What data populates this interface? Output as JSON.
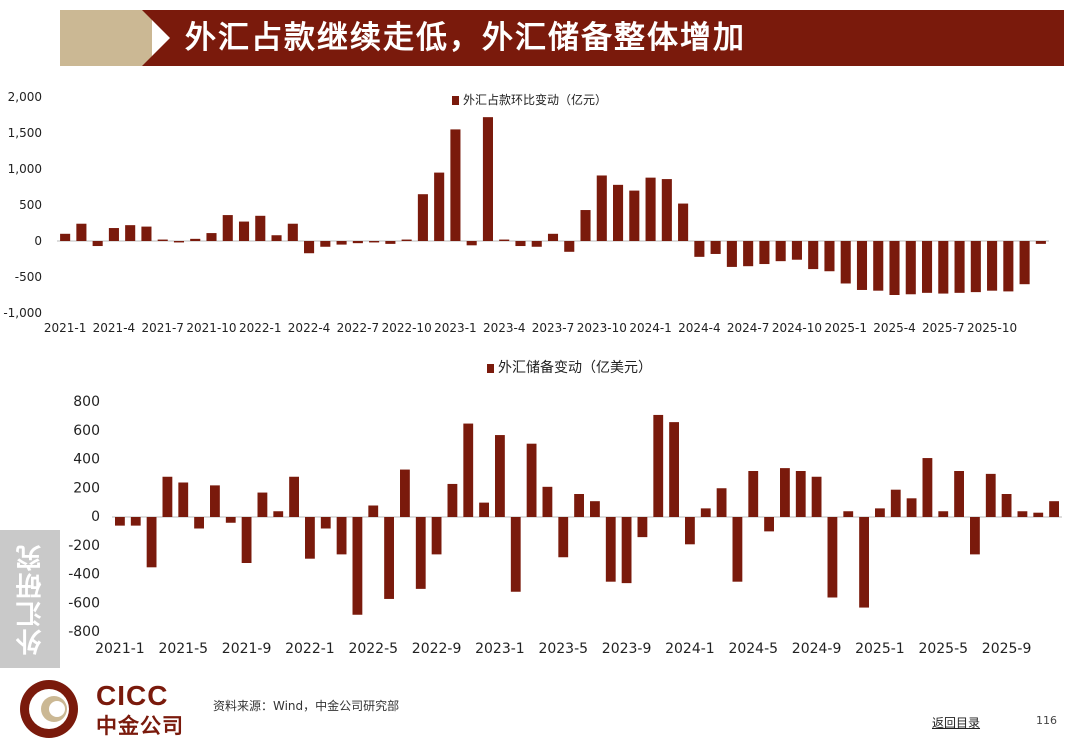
{
  "header": {
    "title": "外汇占款继续走低，外汇储备整体增加"
  },
  "sidebar": {
    "label": "外汇研究"
  },
  "footer": {
    "source": "资料来源：Wind，中金公司研究部",
    "back_link": "返回目录",
    "page_number": "116",
    "logo_en": "CICC",
    "logo_cn": "中金公司"
  },
  "colors": {
    "bar": "#7a1a0c",
    "banner": "#7a1a0c",
    "accent": "#cbb894"
  },
  "chart_data": [
    {
      "type": "bar",
      "title": "外汇占款环比变动（亿元）",
      "legend": "外汇占款环比变动（亿元）",
      "ylim": [
        -1000,
        2000
      ],
      "yticks": [
        2000,
        1500,
        1000,
        500,
        0,
        -500,
        -1000
      ],
      "ytick_labels": [
        "2,000",
        "1,500",
        "1,000",
        "500",
        "0",
        "-500",
        "-1,000"
      ],
      "xtick_labels": [
        "2021-1",
        "2021-4",
        "2021-7",
        "2021-10",
        "2022-1",
        "2022-4",
        "2022-7",
        "2022-10",
        "2023-1",
        "2023-4",
        "2023-7",
        "2023-10",
        "2024-1",
        "2024-4",
        "2024-7",
        "2024-10",
        "2025-1",
        "2025-4",
        "2025-7",
        "2025-10"
      ],
      "start": "2021-1",
      "values": [
        100,
        240,
        -70,
        180,
        220,
        200,
        20,
        -20,
        30,
        110,
        360,
        270,
        350,
        80,
        240,
        -170,
        -80,
        -50,
        -30,
        -20,
        -40,
        20,
        650,
        950,
        1550,
        -60,
        1720,
        20,
        -70,
        -80,
        100,
        -150,
        430,
        910,
        780,
        700,
        880,
        860,
        520,
        -220,
        -180,
        -360,
        -350,
        -320,
        -280,
        -260,
        -390,
        -420,
        -590,
        -680,
        -690,
        -750,
        -740,
        -720,
        -730,
        -720,
        -710,
        -690,
        -700,
        -600,
        -40
      ]
    },
    {
      "type": "bar",
      "title": "外汇储备变动（亿美元）",
      "legend": "外汇储备变动（亿美元）",
      "ylim": [
        -800,
        800
      ],
      "yticks": [
        800,
        600,
        400,
        200,
        0,
        -200,
        -400,
        -600,
        -800
      ],
      "ytick_labels": [
        "800",
        "600",
        "400",
        "200",
        "0",
        "-200",
        "-400",
        "-600",
        "-800"
      ],
      "xtick_labels": [
        "2021-1",
        "2021-5",
        "2021-9",
        "2022-1",
        "2022-5",
        "2022-9",
        "2023-1",
        "2023-5",
        "2023-9",
        "2024-1",
        "2024-5",
        "2024-9",
        "2025-1",
        "2025-5",
        "2025-9"
      ],
      "start": "2021-1",
      "values": [
        -60,
        -60,
        -350,
        280,
        240,
        -80,
        220,
        -40,
        -320,
        170,
        40,
        280,
        -290,
        -80,
        -260,
        -680,
        80,
        -570,
        330,
        -500,
        -260,
        230,
        650,
        100,
        570,
        -520,
        510,
        210,
        -280,
        160,
        110,
        -450,
        -460,
        -140,
        710,
        660,
        -190,
        60,
        200,
        -450,
        320,
        -100,
        340,
        320,
        280,
        -560,
        40,
        -630,
        60,
        190,
        130,
        410,
        40,
        320,
        -260,
        300,
        160,
        40,
        30,
        110
      ]
    }
  ]
}
